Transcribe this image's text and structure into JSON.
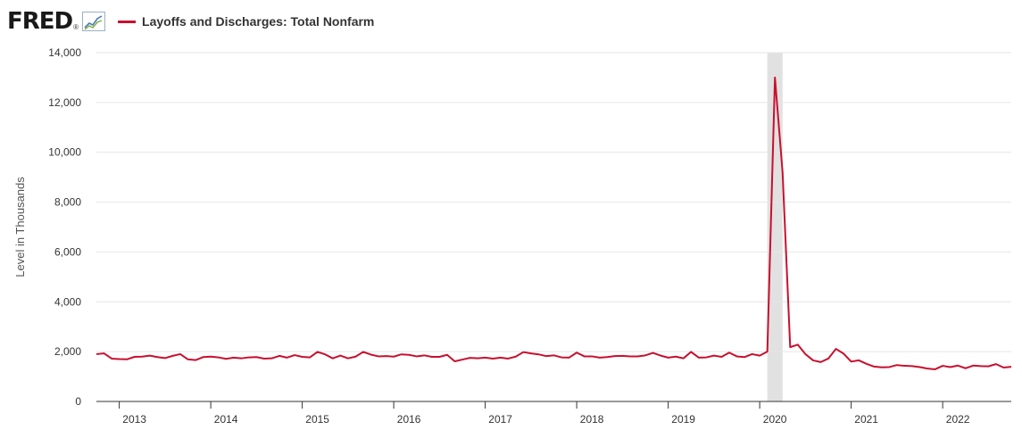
{
  "header": {
    "logo_text": "FRED",
    "legend_label": "Layoffs and Discharges: Total Nonfarm",
    "legend_color": "#c8102e"
  },
  "chart_data": {
    "type": "line",
    "ylabel": "Level in Thousands",
    "ylim": [
      0,
      14000
    ],
    "y_ticks": [
      {
        "value": 0,
        "label": "0"
      },
      {
        "value": 2000,
        "label": "2,000"
      },
      {
        "value": 4000,
        "label": "4,000"
      },
      {
        "value": 6000,
        "label": "6,000"
      },
      {
        "value": 8000,
        "label": "8,000"
      },
      {
        "value": 10000,
        "label": "10,000"
      },
      {
        "value": 12000,
        "label": "12,000"
      },
      {
        "value": 14000,
        "label": "14,000"
      }
    ],
    "x_ticks": [
      "2013",
      "2014",
      "2015",
      "2016",
      "2017",
      "2018",
      "2019",
      "2020",
      "2021",
      "2022"
    ],
    "xlim": [
      "2012-10",
      "2022-10"
    ],
    "grid": true,
    "recession_shading": {
      "start": "2020-02",
      "end": "2020-04",
      "color": "#e1e1e1"
    },
    "series": [
      {
        "name": "Layoffs and Discharges: Total Nonfarm",
        "color": "#c8102e",
        "start": "2012-10",
        "values": [
          1900,
          1930,
          1720,
          1700,
          1690,
          1790,
          1800,
          1840,
          1780,
          1740,
          1830,
          1900,
          1690,
          1660,
          1780,
          1800,
          1770,
          1710,
          1760,
          1730,
          1770,
          1780,
          1720,
          1730,
          1830,
          1760,
          1860,
          1790,
          1770,
          1990,
          1890,
          1730,
          1840,
          1730,
          1800,
          1990,
          1880,
          1810,
          1820,
          1800,
          1890,
          1870,
          1810,
          1850,
          1790,
          1790,
          1870,
          1610,
          1680,
          1750,
          1730,
          1760,
          1720,
          1760,
          1720,
          1800,
          1980,
          1930,
          1890,
          1820,
          1850,
          1770,
          1760,
          1960,
          1810,
          1810,
          1760,
          1780,
          1820,
          1830,
          1810,
          1810,
          1850,
          1950,
          1840,
          1760,
          1800,
          1730,
          1990,
          1760,
          1770,
          1840,
          1790,
          1960,
          1810,
          1780,
          1900,
          1840,
          2000,
          13000,
          9200,
          2180,
          2280,
          1900,
          1650,
          1580,
          1720,
          2110,
          1920,
          1600,
          1650,
          1510,
          1400,
          1370,
          1380,
          1460,
          1430,
          1420,
          1380,
          1320,
          1290,
          1430,
          1380,
          1440,
          1330,
          1440,
          1420,
          1410,
          1500,
          1360,
          1390
        ]
      }
    ]
  }
}
